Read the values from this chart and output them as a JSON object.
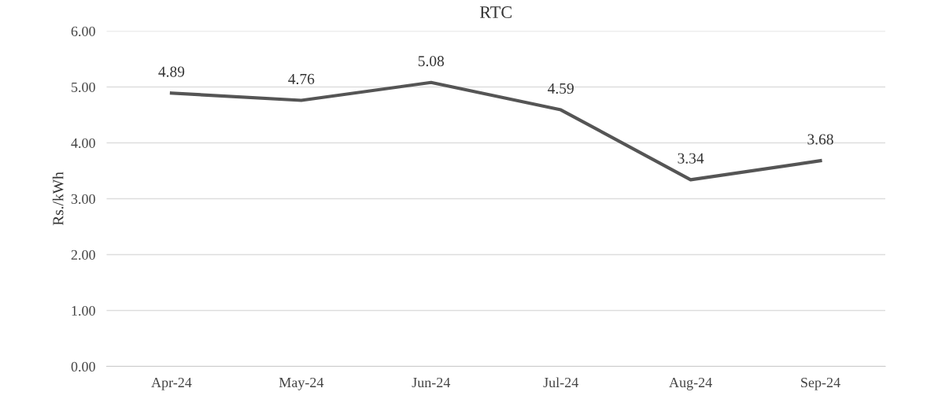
{
  "chart_data": {
    "type": "line",
    "title": "RTC",
    "ylabel": "Rs./kWh",
    "categories": [
      "Apr-24",
      "May-24",
      "Jun-24",
      "Jul-24",
      "Aug-24",
      "Sep-24"
    ],
    "series": [
      {
        "color": "#555555",
        "values": [
          4.89,
          4.76,
          5.08,
          4.59,
          3.34,
          3.68
        ]
      }
    ],
    "ylim": [
      0,
      6
    ],
    "yticks": [
      {
        "value": 0,
        "label": "0.00"
      },
      {
        "value": 1,
        "label": "1.00"
      },
      {
        "value": 2,
        "label": "2.00"
      },
      {
        "value": 3,
        "label": "3.00"
      },
      {
        "value": 4,
        "label": "4.00"
      },
      {
        "value": 5,
        "label": "5.00"
      },
      {
        "value": 6,
        "label": "6.00"
      }
    ],
    "grid": "y",
    "data_labels": true,
    "marker": "none",
    "line_style": "solid"
  }
}
